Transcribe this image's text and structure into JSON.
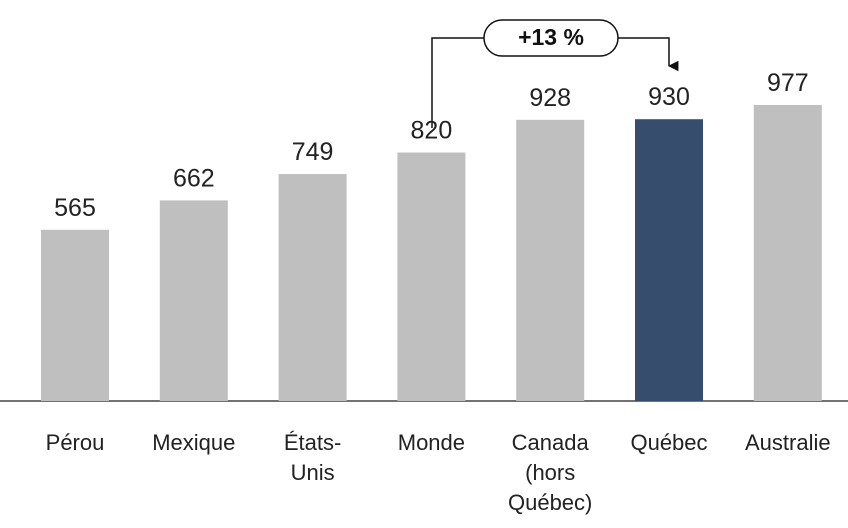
{
  "chart_data": {
    "type": "bar",
    "categories": [
      "Pérou",
      "Mexique",
      "États-\nUnis",
      "Monde",
      "Canada\n(hors\nQuébec)",
      "Québec",
      "Australie"
    ],
    "values": [
      565,
      662,
      749,
      820,
      928,
      930,
      977
    ],
    "colors": [
      "#bfbfbf",
      "#bfbfbf",
      "#bfbfbf",
      "#bfbfbf",
      "#bfbfbf",
      "#364d6e",
      "#bfbfbf"
    ],
    "annotation": "+13 %"
  }
}
